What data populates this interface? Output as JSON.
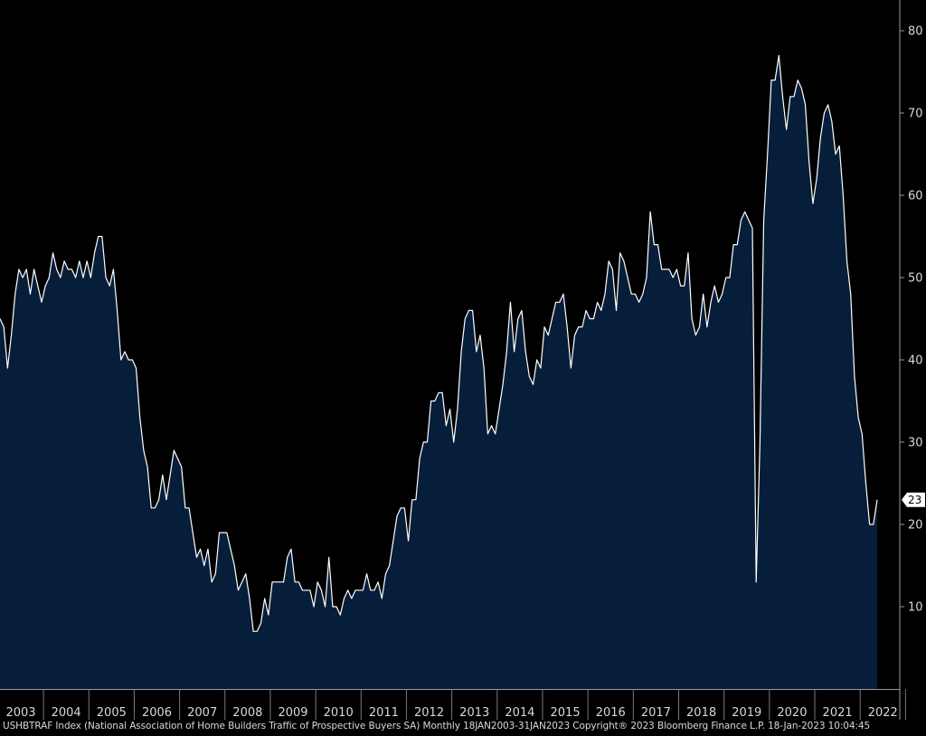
{
  "chart_data": {
    "type": "area",
    "frequency": "monthly",
    "x_start": "2003-01",
    "ylim": [
      0,
      80
    ],
    "yticks": [
      "10",
      "20",
      "30",
      "40",
      "50",
      "60",
      "70",
      "80"
    ],
    "xticks": [
      "2003",
      "2004",
      "2005",
      "2006",
      "2007",
      "2008",
      "2009",
      "2010",
      "2011",
      "2012",
      "2013",
      "2014",
      "2015",
      "2016",
      "2017",
      "2018",
      "2019",
      "2020",
      "2021",
      "2022"
    ],
    "last_value_label": "23",
    "colors": {
      "fill": "#071e3b",
      "line": "#ffffff",
      "background": "#000000",
      "axis": "#9a9a9a"
    },
    "grid": false,
    "values": [
      45,
      44,
      39,
      43,
      48,
      51,
      50,
      51,
      48,
      51,
      49,
      47,
      49,
      50,
      53,
      51,
      50,
      52,
      51,
      51,
      50,
      52,
      50,
      52,
      50,
      53,
      55,
      55,
      50,
      49,
      51,
      46,
      40,
      41,
      40,
      40,
      39,
      33,
      29,
      27,
      22,
      22,
      23,
      26,
      23,
      26,
      29,
      28,
      27,
      22,
      22,
      19,
      16,
      17,
      15,
      17,
      13,
      14,
      19,
      19,
      19,
      17,
      15,
      12,
      13,
      14,
      11,
      7,
      7,
      8,
      11,
      9,
      13,
      13,
      13,
      13,
      16,
      17,
      13,
      13,
      12,
      12,
      12,
      10,
      13,
      12,
      10,
      16,
      10,
      10,
      9,
      11,
      12,
      11,
      12,
      12,
      12,
      14,
      12,
      12,
      13,
      11,
      14,
      15,
      18,
      21,
      22,
      22,
      18,
      23,
      23,
      28,
      30,
      30,
      35,
      35,
      36,
      36,
      32,
      34,
      30,
      34,
      41,
      45,
      46,
      46,
      41,
      43,
      39,
      31,
      32,
      31,
      34,
      37,
      41,
      47,
      41,
      45,
      46,
      41,
      38,
      37,
      40,
      39,
      44,
      43,
      45,
      47,
      47,
      48,
      44,
      39,
      43,
      44,
      44,
      46,
      45,
      45,
      47,
      46,
      48,
      52,
      51,
      46,
      53,
      52,
      50,
      48,
      48,
      47,
      48,
      50,
      58,
      54,
      54,
      51,
      51,
      51,
      50,
      51,
      49,
      49,
      53,
      45,
      43,
      44,
      48,
      44,
      47,
      49,
      47,
      48,
      50,
      50,
      54,
      54,
      57,
      58,
      57,
      56,
      13,
      30,
      57,
      65,
      74,
      74,
      77,
      72,
      68,
      72,
      72,
      74,
      73,
      71,
      64,
      59,
      62,
      67,
      70,
      71,
      69,
      65,
      66,
      60,
      52,
      48,
      38,
      33,
      31,
      25,
      20,
      20,
      23
    ]
  },
  "footer": {
    "text": "USHBTRAF Index (National Association of Home Builders Traffic of Prospective Buyers SA)  Monthly 18JAN2003-31JAN2023 Copyright® 2023 Bloomberg Finance L.P. 18-Jan-2023 10:04:45"
  }
}
